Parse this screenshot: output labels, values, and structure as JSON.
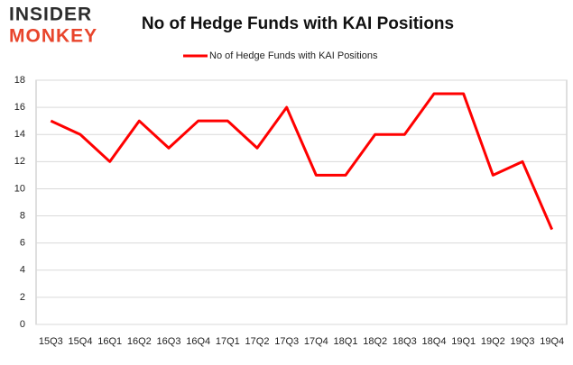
{
  "logo": {
    "line1": "INSIDER",
    "line2": "MONKEY"
  },
  "chart_data": {
    "type": "line",
    "title": "No of Hedge Funds with KAI Positions",
    "categories": [
      "15Q3",
      "15Q4",
      "16Q1",
      "16Q2",
      "16Q3",
      "16Q4",
      "17Q1",
      "17Q2",
      "17Q3",
      "17Q4",
      "18Q1",
      "18Q2",
      "18Q3",
      "18Q4",
      "19Q1",
      "19Q2",
      "19Q3",
      "19Q4"
    ],
    "series": [
      {
        "name": "No of Hedge Funds with KAI Positions",
        "color": "#ff0000",
        "values": [
          15,
          14,
          12,
          15,
          13,
          15,
          15,
          13,
          16,
          11,
          11,
          14,
          14,
          17,
          17,
          11,
          12,
          7
        ]
      }
    ],
    "ylim": [
      0,
      18
    ],
    "yticks": [
      0,
      2,
      4,
      6,
      8,
      10,
      12,
      14,
      16,
      18
    ],
    "grid": true,
    "legend": "top"
  }
}
